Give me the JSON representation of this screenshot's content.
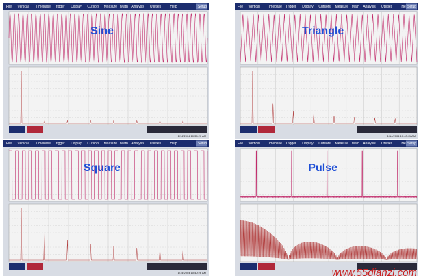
{
  "menu": [
    "File",
    "Vertical",
    "Timebase",
    "Trigger",
    "Display",
    "Cursors",
    "Measure",
    "Math",
    "Analysis",
    "Utilities",
    "Help"
  ],
  "setup_button": "Setup",
  "panels": [
    {
      "title": "Sine",
      "timestamp": "1/14/2004 10:35:20 AM"
    },
    {
      "title": "Triangle",
      "timestamp": "1/14/2004 10:40:41 AM"
    },
    {
      "title": "Square",
      "timestamp": "1/14/2004 10:40:26 AM"
    },
    {
      "title": "Pulse"
    }
  ],
  "watermark": "www.55dianzi.com"
}
